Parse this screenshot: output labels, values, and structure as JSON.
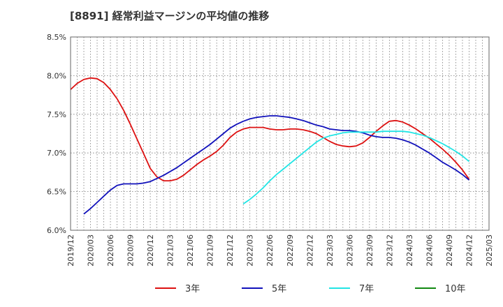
{
  "chart_data": {
    "type": "line",
    "title": "[8891]  経常利益マージンの平均値の推移",
    "xlabel": "",
    "ylabel": "",
    "ylim": [
      6.0,
      8.5
    ],
    "y_ticks": [
      "6.0%",
      "6.5%",
      "7.0%",
      "7.5%",
      "8.0%",
      "8.5%"
    ],
    "x_ticks": [
      "2019/12",
      "2020/03",
      "2020/06",
      "2020/09",
      "2020/12",
      "2021/03",
      "2021/06",
      "2021/09",
      "2021/12",
      "2022/03",
      "2022/06",
      "2022/09",
      "2022/12",
      "2023/03",
      "2023/06",
      "2023/09",
      "2023/12",
      "2024/03",
      "2024/06",
      "2024/09",
      "2024/12",
      "2025/03"
    ],
    "grid": true,
    "legend_position": "bottom",
    "colors": {
      "3年": "#dd1111",
      "5年": "#1111bb",
      "7年": "#22e5e5",
      "10年": "#118811"
    },
    "series": [
      {
        "name": "3年",
        "color": "#dd1111",
        "x": [
          "2019/12",
          "2020/01",
          "2020/02",
          "2020/03",
          "2020/04",
          "2020/05",
          "2020/06",
          "2020/07",
          "2020/08",
          "2020/09",
          "2020/10",
          "2020/11",
          "2020/12",
          "2021/01",
          "2021/02",
          "2021/03",
          "2021/04",
          "2021/05",
          "2021/06",
          "2021/07",
          "2021/08",
          "2021/09",
          "2021/10",
          "2021/11",
          "2021/12",
          "2022/01",
          "2022/02",
          "2022/03",
          "2022/04",
          "2022/05",
          "2022/06",
          "2022/07",
          "2022/08",
          "2022/09",
          "2022/10",
          "2022/11",
          "2022/12",
          "2023/01",
          "2023/02",
          "2023/03",
          "2023/04",
          "2023/05",
          "2023/06",
          "2023/07",
          "2023/08",
          "2023/09",
          "2023/10",
          "2023/11",
          "2023/12",
          "2024/01",
          "2024/02",
          "2024/03",
          "2024/04",
          "2024/05",
          "2024/06",
          "2024/07",
          "2024/08",
          "2024/09",
          "2024/10",
          "2024/11",
          "2024/12"
        ],
        "values": [
          7.82,
          7.9,
          7.95,
          7.97,
          7.96,
          7.91,
          7.82,
          7.7,
          7.55,
          7.37,
          7.18,
          6.99,
          6.8,
          6.69,
          6.64,
          6.64,
          6.66,
          6.71,
          6.78,
          6.85,
          6.91,
          6.96,
          7.02,
          7.1,
          7.2,
          7.27,
          7.31,
          7.33,
          7.33,
          7.33,
          7.31,
          7.3,
          7.3,
          7.31,
          7.31,
          7.3,
          7.28,
          7.25,
          7.2,
          7.15,
          7.11,
          7.09,
          7.08,
          7.09,
          7.13,
          7.2,
          7.28,
          7.35,
          7.41,
          7.42,
          7.4,
          7.36,
          7.31,
          7.25,
          7.19,
          7.12,
          7.05,
          6.97,
          6.88,
          6.78,
          6.66
        ]
      },
      {
        "name": "5年",
        "color": "#1111bb",
        "x": [
          "2020/02",
          "2020/03",
          "2020/04",
          "2020/05",
          "2020/06",
          "2020/07",
          "2020/08",
          "2020/09",
          "2020/10",
          "2020/11",
          "2020/12",
          "2021/01",
          "2021/02",
          "2021/03",
          "2021/04",
          "2021/05",
          "2021/06",
          "2021/07",
          "2021/08",
          "2021/09",
          "2021/10",
          "2021/11",
          "2021/12",
          "2022/01",
          "2022/02",
          "2022/03",
          "2022/04",
          "2022/05",
          "2022/06",
          "2022/07",
          "2022/08",
          "2022/09",
          "2022/10",
          "2022/11",
          "2022/12",
          "2023/01",
          "2023/02",
          "2023/03",
          "2023/04",
          "2023/05",
          "2023/06",
          "2023/07",
          "2023/08",
          "2023/09",
          "2023/10",
          "2023/11",
          "2023/12",
          "2024/01",
          "2024/02",
          "2024/03",
          "2024/04",
          "2024/05",
          "2024/06",
          "2024/07",
          "2024/08",
          "2024/09",
          "2024/10",
          "2024/11",
          "2024/12"
        ],
        "values": [
          6.21,
          6.28,
          6.36,
          6.44,
          6.52,
          6.58,
          6.6,
          6.6,
          6.6,
          6.61,
          6.63,
          6.67,
          6.71,
          6.76,
          6.81,
          6.87,
          6.93,
          6.99,
          7.05,
          7.11,
          7.18,
          7.25,
          7.32,
          7.37,
          7.41,
          7.44,
          7.46,
          7.47,
          7.48,
          7.48,
          7.47,
          7.46,
          7.44,
          7.42,
          7.39,
          7.36,
          7.34,
          7.31,
          7.3,
          7.29,
          7.29,
          7.28,
          7.26,
          7.23,
          7.21,
          7.2,
          7.2,
          7.19,
          7.17,
          7.14,
          7.1,
          7.05,
          7.0,
          6.94,
          6.88,
          6.83,
          6.78,
          6.72,
          6.65
        ]
      },
      {
        "name": "7年",
        "color": "#22e5e5",
        "x": [
          "2022/02",
          "2022/03",
          "2022/04",
          "2022/05",
          "2022/06",
          "2022/07",
          "2022/08",
          "2022/09",
          "2022/10",
          "2022/11",
          "2022/12",
          "2023/01",
          "2023/02",
          "2023/03",
          "2023/04",
          "2023/05",
          "2023/06",
          "2023/07",
          "2023/08",
          "2023/09",
          "2023/10",
          "2023/11",
          "2023/12",
          "2024/01",
          "2024/02",
          "2024/03",
          "2024/04",
          "2024/05",
          "2024/06",
          "2024/07",
          "2024/08",
          "2024/09",
          "2024/10",
          "2024/11",
          "2024/12"
        ],
        "values": [
          6.34,
          6.4,
          6.47,
          6.55,
          6.64,
          6.72,
          6.79,
          6.86,
          6.93,
          7.0,
          7.07,
          7.14,
          7.19,
          7.22,
          7.24,
          7.26,
          7.27,
          7.27,
          7.27,
          7.27,
          7.27,
          7.28,
          7.28,
          7.28,
          7.28,
          7.27,
          7.25,
          7.23,
          7.2,
          7.16,
          7.12,
          7.07,
          7.02,
          6.96,
          6.89
        ]
      },
      {
        "name": "10年",
        "color": "#118811",
        "x": [],
        "values": []
      }
    ]
  }
}
